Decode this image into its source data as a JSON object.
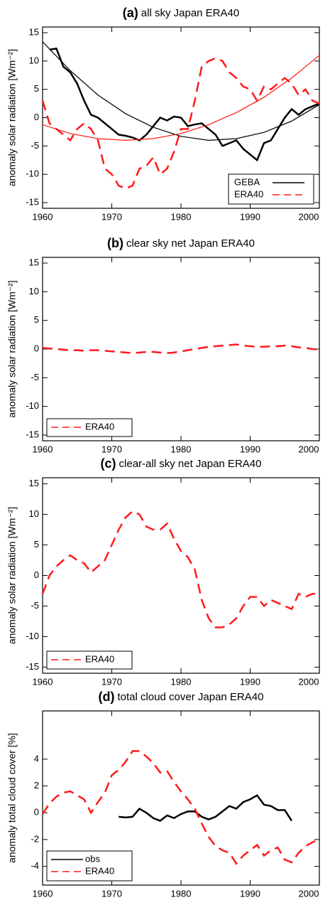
{
  "chart_data": [
    {
      "type": "line",
      "panel": "(a)",
      "title": "all sky Japan ERA40",
      "ylabel": "anomaly solar radiation [Wm⁻²]",
      "x": [
        1960,
        1961,
        1962,
        1963,
        1964,
        1965,
        1966,
        1967,
        1968,
        1969,
        1970,
        1971,
        1972,
        1973,
        1974,
        1975,
        1976,
        1977,
        1978,
        1979,
        1980,
        1981,
        1982,
        1983,
        1984,
        1985,
        1986,
        1987,
        1988,
        1989,
        1990,
        1991,
        1992,
        1993,
        1994,
        1995,
        1996,
        1997,
        1998,
        1999,
        2000
      ],
      "xlim": [
        1960,
        2000
      ],
      "xticks": [
        1960,
        1970,
        1980,
        1990,
        2000
      ],
      "ylim": [
        -16,
        16
      ],
      "yticks": [
        -15,
        -10,
        -5,
        0,
        5,
        10,
        15
      ],
      "legend": "lower right",
      "series": [
        {
          "name": "GEBA",
          "color": "#000000",
          "style": "solid",
          "values": [
            null,
            12,
            12.2,
            9,
            8,
            6,
            3,
            0.5,
            0,
            -1,
            -2,
            -3,
            -3.2,
            -3.5,
            -4,
            -3,
            -1.5,
            0,
            -0.5,
            0.2,
            0,
            -1.5,
            -1.2,
            -1,
            -2,
            -3,
            -5,
            -4.5,
            -4,
            -5.5,
            -6.5,
            -7.5,
            -4.5,
            -4,
            -2,
            0,
            1.5,
            0.5,
            1.5,
            2,
            2.5
          ]
        },
        {
          "name": "ERA40",
          "color": "#ff1a1a",
          "style": "dashed",
          "values": [
            3,
            -1,
            -2,
            -3,
            -4,
            -2,
            -1,
            -2,
            -4,
            -9,
            -10,
            -12,
            -12.5,
            -12,
            -9,
            -8.5,
            -7,
            -10,
            -9,
            -6,
            -2,
            -2,
            3,
            9,
            10,
            10.5,
            10,
            8,
            7,
            5.5,
            5,
            3,
            5.5,
            5,
            6,
            7,
            6,
            4,
            5,
            3,
            2.5
          ]
        },
        {
          "color": "#000000",
          "style": "thin",
          "x": [
            1960,
            1964,
            1968,
            1972,
            1976,
            1980,
            1984,
            1988,
            1992,
            1996,
            2000
          ],
          "values": [
            13.4,
            8.3,
            4.0,
            0.7,
            -1.7,
            -3.3,
            -4.0,
            -3.7,
            -2.6,
            -0.6,
            2.3
          ]
        },
        {
          "color": "#ff1a1a",
          "style": "thin",
          "x": [
            1960,
            1964,
            1968,
            1972,
            1976,
            1980,
            1984,
            1988,
            1992,
            1996,
            2000
          ],
          "values": [
            -1.25,
            -2.8,
            -3.7,
            -4,
            -3.7,
            -2.8,
            -1.25,
            0.9,
            3.6,
            7,
            11
          ]
        }
      ]
    },
    {
      "type": "line",
      "panel": "(b)",
      "title": "clear sky net Japan ERA40",
      "ylabel": "anomaly solar radiation [Wm⁻²]",
      "x": [
        1960,
        1961,
        1962,
        1963,
        1964,
        1965,
        1966,
        1967,
        1968,
        1969,
        1970,
        1971,
        1972,
        1973,
        1974,
        1975,
        1976,
        1977,
        1978,
        1979,
        1980,
        1981,
        1982,
        1983,
        1984,
        1985,
        1986,
        1987,
        1988,
        1989,
        1990,
        1991,
        1992,
        1993,
        1994,
        1995,
        1996,
        1997,
        1998,
        1999,
        2000
      ],
      "xlim": [
        1960,
        2000
      ],
      "xticks": [
        1960,
        1970,
        1980,
        1990,
        2000
      ],
      "ylim": [
        -16,
        16
      ],
      "yticks": [
        -15,
        -10,
        -5,
        0,
        5,
        10,
        15
      ],
      "legend": "lower left",
      "series": [
        {
          "name": "ERA40",
          "color": "#ff1a1a",
          "style": "dashed",
          "values": [
            0.2,
            0.1,
            0,
            -0.1,
            -0.2,
            -0.2,
            -0.3,
            -0.2,
            -0.2,
            -0.3,
            -0.4,
            -0.5,
            -0.6,
            -0.7,
            -0.6,
            -0.5,
            -0.5,
            -0.6,
            -0.7,
            -0.6,
            -0.4,
            -0.2,
            0,
            0.2,
            0.4,
            0.5,
            0.6,
            0.7,
            0.8,
            0.6,
            0.5,
            0.4,
            0.4,
            0.5,
            0.5,
            0.6,
            0.5,
            0.3,
            0.2,
            0,
            -0.1
          ]
        }
      ]
    },
    {
      "type": "line",
      "panel": "(c)",
      "title": "clear-all sky net Japan ERA40",
      "ylabel": "anomaly solar radiation [Wm⁻²]",
      "x": [
        1960,
        1961,
        1962,
        1963,
        1964,
        1965,
        1966,
        1967,
        1968,
        1969,
        1970,
        1971,
        1972,
        1973,
        1974,
        1975,
        1976,
        1977,
        1978,
        1979,
        1980,
        1981,
        1982,
        1983,
        1984,
        1985,
        1986,
        1987,
        1988,
        1989,
        1990,
        1991,
        1992,
        1993,
        1994,
        1995,
        1996,
        1997,
        1998,
        1999,
        2000
      ],
      "xlim": [
        1960,
        2000
      ],
      "xticks": [
        1960,
        1970,
        1980,
        1990,
        2000
      ],
      "ylim": [
        -16,
        16
      ],
      "yticks": [
        -15,
        -10,
        -5,
        0,
        5,
        10,
        15
      ],
      "legend": "lower left",
      "series": [
        {
          "name": "ERA40",
          "color": "#ff1a1a",
          "style": "dashed",
          "values": [
            -3,
            0,
            1.5,
            2.5,
            3.3,
            2.5,
            2,
            0.5,
            1.5,
            2.5,
            5,
            7.5,
            9.5,
            10.5,
            10,
            8,
            7.5,
            7.5,
            8.5,
            6,
            4,
            3,
            1,
            -4,
            -7,
            -8.5,
            -8.5,
            -8,
            -7,
            -5,
            -3.5,
            -3.5,
            -5,
            -4,
            -4.5,
            -5,
            -5.5,
            -3,
            -3.5,
            -3,
            -3
          ]
        }
      ]
    },
    {
      "type": "line",
      "panel": "(d)",
      "title": "total cloud cover Japan ERA40",
      "ylabel": "anomaly total cloud cover [%]",
      "x": [
        1960,
        1961,
        1962,
        1963,
        1964,
        1965,
        1966,
        1967,
        1968,
        1969,
        1970,
        1971,
        1972,
        1973,
        1974,
        1975,
        1976,
        1977,
        1978,
        1979,
        1980,
        1981,
        1982,
        1983,
        1984,
        1985,
        1986,
        1987,
        1988,
        1989,
        1990,
        1991,
        1992,
        1993,
        1994,
        1995,
        1996,
        1997,
        1998,
        1999,
        2000
      ],
      "xlim": [
        1960,
        2000
      ],
      "xticks": [
        1960,
        1970,
        1980,
        1990,
        2000
      ],
      "ylim": [
        -5.4,
        7.6
      ],
      "yticks": [
        -4,
        -2,
        0,
        2,
        4
      ],
      "legend": "lower left",
      "series": [
        {
          "name": "obs",
          "color": "#000000",
          "style": "solid",
          "values": [
            null,
            null,
            null,
            null,
            null,
            null,
            null,
            null,
            null,
            null,
            null,
            -0.3,
            -0.35,
            -0.3,
            0.3,
            0,
            -0.4,
            -0.6,
            -0.2,
            -0.4,
            -0.1,
            0.1,
            0.1,
            -0.3,
            -0.5,
            -0.3,
            0.1,
            0.5,
            0.3,
            0.8,
            1.0,
            1.3,
            0.6,
            0.5,
            0.2,
            0.2,
            -0.6,
            null,
            null,
            null,
            null
          ]
        },
        {
          "name": "ERA40",
          "color": "#ff1a1a",
          "style": "dashed",
          "values": [
            -0.1,
            0.7,
            1.2,
            1.5,
            1.6,
            1.3,
            1.0,
            0,
            0.8,
            1.5,
            2.8,
            3.2,
            3.8,
            4.6,
            4.6,
            4.2,
            3.7,
            3.0,
            3.1,
            2.3,
            1.6,
            1.0,
            0.3,
            -0.8,
            -1.8,
            -2.5,
            -2.8,
            -3.0,
            -3.8,
            -3.2,
            -2.8,
            -2.4,
            -3.2,
            -2.8,
            -2.6,
            -3.5,
            -3.7,
            -3.0,
            -2.5,
            -2.2,
            -2.0
          ]
        }
      ]
    }
  ]
}
